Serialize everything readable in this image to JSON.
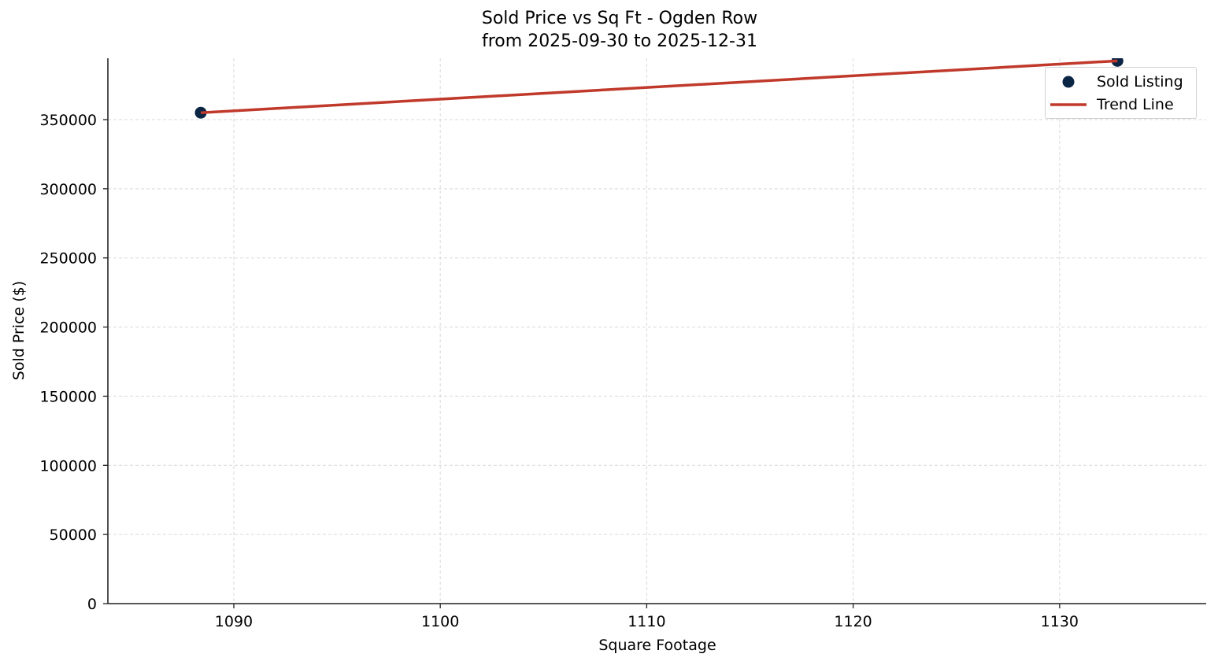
{
  "chart_data": {
    "type": "scatter",
    "title": "Sold Price vs Sq Ft - Ogden Row",
    "subtitle": "from 2025-09-30 to 2025-12-31",
    "xlabel": "Square Footage",
    "ylabel": "Sold Price ($)",
    "xlim": [
      1083.9,
      1137.1
    ],
    "ylim": [
      0,
      394400
    ],
    "xticks": [
      1090,
      1100,
      1110,
      1120,
      1130
    ],
    "yticks": [
      0,
      50000,
      100000,
      150000,
      200000,
      250000,
      300000,
      350000
    ],
    "grid": true,
    "legend_position": "upper right",
    "series": [
      {
        "name": "Sold Listing",
        "kind": "scatter",
        "color": "#0b2545",
        "x": [
          1088.4,
          1132.8
        ],
        "y": [
          355000,
          392500
        ]
      },
      {
        "name": "Trend Line",
        "kind": "line",
        "color": "#c0392b",
        "x": [
          1088.4,
          1132.8
        ],
        "y": [
          355000,
          392500
        ]
      }
    ]
  },
  "legend": {
    "items": [
      {
        "label": "Sold Listing",
        "icon": "circle-marker"
      },
      {
        "label": "Trend Line",
        "icon": "line-marker"
      }
    ]
  }
}
